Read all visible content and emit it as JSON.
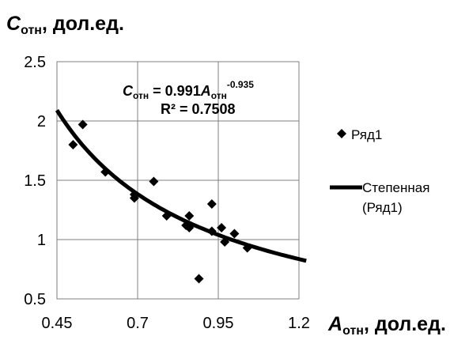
{
  "chart_data": {
    "type": "scatter",
    "ylabel": {
      "main": "C",
      "sub": "отн",
      "rest": ", дол.ед."
    },
    "xlabel": {
      "main": "A",
      "sub": "отн",
      "rest": ", дол.ед."
    },
    "xlim": [
      0.45,
      1.2
    ],
    "ylim": [
      0.5,
      2.5
    ],
    "x_ticks": [
      "0.45",
      "0.7",
      "0.95",
      "1.2"
    ],
    "y_ticks": [
      "0.5",
      "1",
      "1.5",
      "2",
      "2.5"
    ],
    "x_tick_values": [
      0.45,
      0.7,
      0.95,
      1.2
    ],
    "y_tick_values": [
      0.5,
      1,
      1.5,
      2,
      2.5
    ],
    "grid": true,
    "series": [
      {
        "name": "Ряд1",
        "marker": "diamond",
        "x": [
          0.5,
          0.53,
          0.6,
          0.69,
          0.69,
          0.75,
          0.79,
          0.85,
          0.86,
          0.86,
          0.89,
          0.93,
          0.93,
          0.96,
          0.97,
          1.0,
          1.04
        ],
        "y": [
          1.8,
          1.97,
          1.57,
          1.35,
          1.38,
          1.49,
          1.2,
          1.12,
          1.2,
          1.1,
          0.67,
          1.3,
          1.07,
          1.1,
          0.98,
          1.05,
          0.93
        ]
      }
    ],
    "trendline": {
      "name": "Степенная",
      "name_line2": "(Ряд1)",
      "type": "power",
      "coefficient": 0.991,
      "exponent": -0.935,
      "equation": {
        "lhs": "C",
        "lhs_sub": "отн",
        "mid": " = 0.991",
        "var": "A",
        "var_sub": "отн",
        "exp": "-0.935"
      },
      "r2": "R² = 0.7508"
    },
    "legend_placement": "right",
    "colors": {
      "marker": "#000000",
      "trendline": "#000000",
      "grid": "#7f7f7f"
    }
  }
}
